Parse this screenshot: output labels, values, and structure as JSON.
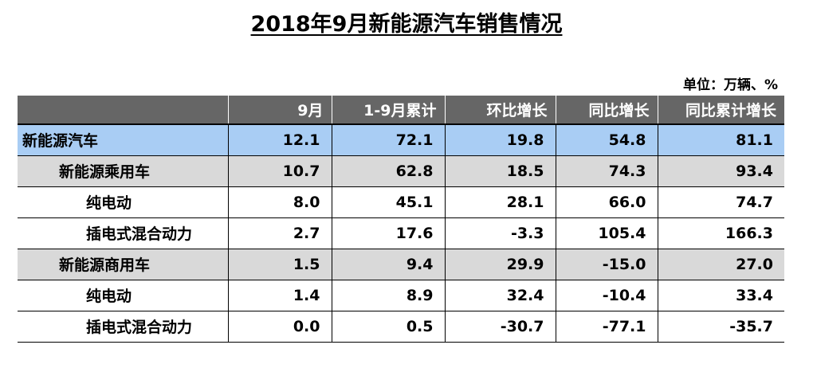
{
  "title": "2018年9月新能源汽车销售情况",
  "unit": "单位：万辆、%",
  "table": {
    "headers": [
      "",
      "9月",
      "1-9月累计",
      "环比增长",
      "同比增长",
      "同比累计增长"
    ],
    "rows": [
      {
        "label": "新能源汽车",
        "values": [
          "12.1",
          "72.1",
          "19.8",
          "54.8",
          "81.1"
        ]
      },
      {
        "label": "新能源乘用车",
        "values": [
          "10.7",
          "62.8",
          "18.5",
          "74.3",
          "93.4"
        ]
      },
      {
        "label": "纯电动",
        "values": [
          "8.0",
          "45.1",
          "28.1",
          "66.0",
          "74.7"
        ]
      },
      {
        "label": "插电式混合动力",
        "values": [
          "2.7",
          "17.6",
          "-3.3",
          "105.4",
          "166.3"
        ]
      },
      {
        "label": "新能源商用车",
        "values": [
          "1.5",
          "9.4",
          "29.9",
          "-15.0",
          "27.0"
        ]
      },
      {
        "label": "纯电动",
        "values": [
          "1.4",
          "8.9",
          "32.4",
          "-10.4",
          "33.4"
        ]
      },
      {
        "label": "插电式混合动力",
        "values": [
          "0.0",
          "0.5",
          "-30.7",
          "-77.1",
          "-35.7"
        ]
      }
    ]
  },
  "colors": {
    "header_bg": "#666666",
    "total_row_bg": "#a9cdf4",
    "subtotal_row_bg": "#d9d9d9"
  }
}
